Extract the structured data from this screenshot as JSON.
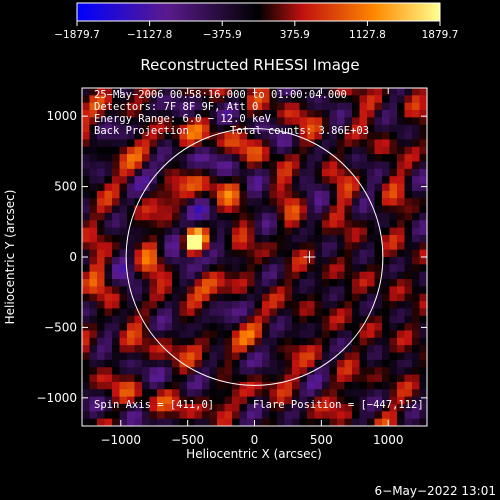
{
  "chart_data": {
    "type": "heatmap",
    "title": "Reconstructed RHESSI Image",
    "xlabel": "Heliocentric X (arcsec)",
    "ylabel": "Heliocentric Y (arcsec)",
    "xlim": [
      -1290,
      1290
    ],
    "ylim": [
      -1200,
      1200
    ],
    "xticks": [
      -1000,
      -500,
      0,
      500,
      1000
    ],
    "yticks": [
      -1000,
      -500,
      0,
      500,
      1000
    ],
    "xtick_labels": [
      "−1000",
      "−500",
      "0",
      "500",
      "1000"
    ],
    "ytick_labels": [
      "−1000",
      "−500",
      "0",
      "500",
      "1000"
    ],
    "colorbar": {
      "range": [
        -1879.7,
        1879.7
      ],
      "ticks": [
        -1879.7,
        -1127.8,
        -375.9,
        375.9,
        1127.8,
        1879.7
      ],
      "tick_labels": [
        "−1879.7",
        "−1127.8",
        "−375.9",
        "375.9",
        "1127.8",
        "1879.7"
      ],
      "colors": [
        "#0000ff",
        "#5a1a8c",
        "#000000",
        "#c01010",
        "#ff8800",
        "#ffff90"
      ]
    },
    "annotations": {
      "time": "25−May−2006 00:58:16.000 to 01:00:04.000",
      "detectors": "Detectors: 7F 8F 9F, Att 0",
      "energy": "Energy Range: 6.0 − 12.0 keV",
      "method": "Back Projection",
      "counts": "Total counts: 3.86E+03",
      "spin_axis": "Spin Axis = [411,0]",
      "flare_position": "Flare Position = [−447,112]"
    },
    "solar_disk": {
      "center": [
        0,
        0
      ],
      "radius": 960
    },
    "spin_axis_marker": [
      411,
      0
    ],
    "flare_source": {
      "x": -447,
      "y": 112,
      "peak": 1879.7
    }
  },
  "footer": {
    "timestamp": "6−May−2022 13:01"
  }
}
